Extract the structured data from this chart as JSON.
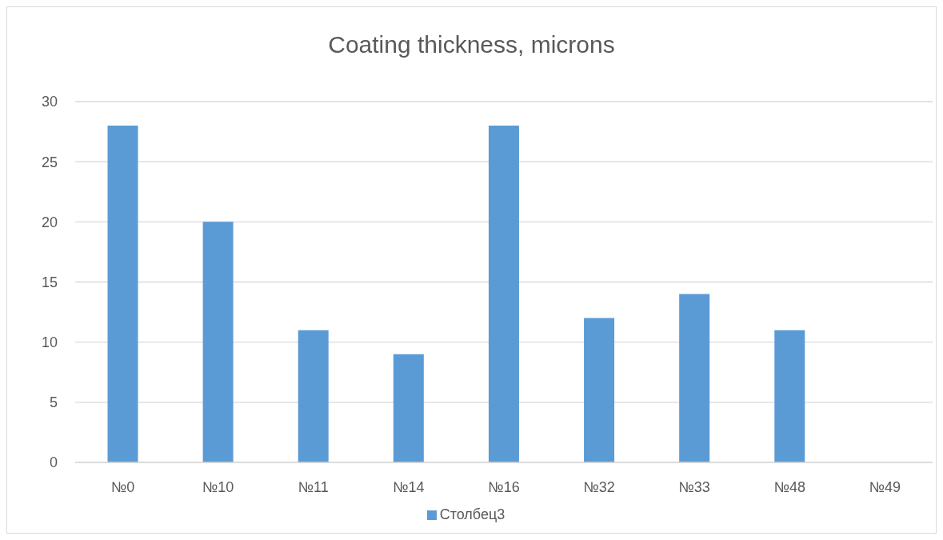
{
  "chart_data": {
    "type": "bar",
    "title": "Coating thickness, microns",
    "categories": [
      "№0",
      "№10",
      "№11",
      "№14",
      "№16",
      "№32",
      "№33",
      "№48",
      "№49"
    ],
    "series": [
      {
        "name": "Столбец3",
        "color": "#5b9bd5",
        "values": [
          28,
          20,
          11,
          9,
          28,
          12,
          14,
          11,
          null
        ]
      }
    ],
    "ylim": [
      0,
      30
    ],
    "yticks": [
      0,
      5,
      10,
      15,
      20,
      25,
      30
    ],
    "grid": "y",
    "legend": "bottom"
  }
}
